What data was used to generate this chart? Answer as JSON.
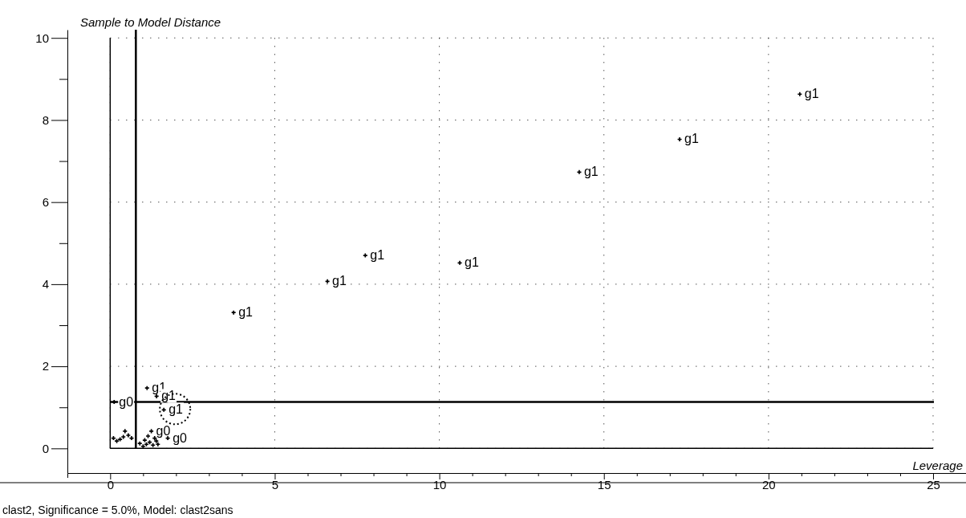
{
  "chart_data": {
    "type": "scatter",
    "xlabel": "Leverage",
    "ylabel": "Sample to Model Distance",
    "annotations": [
      "clast2, Significance = 5.0%, Model: clast2sans"
    ],
    "xlim": [
      -1.3,
      26
    ],
    "ylim": [
      -0.6,
      10.2
    ],
    "xticks": [
      0,
      {
        "value": 1,
        "label": null
      },
      {
        "value": 2,
        "label": null
      },
      {
        "value": 3,
        "label": null
      },
      {
        "value": 4,
        "label": null
      },
      5,
      {
        "value": 6,
        "label": null
      },
      {
        "value": 7,
        "label": null
      },
      {
        "value": 8,
        "label": null
      },
      {
        "value": 9,
        "label": null
      },
      10,
      {
        "value": 11,
        "label": null
      },
      {
        "value": 12,
        "label": null
      },
      {
        "value": 13,
        "label": null
      },
      {
        "value": 14,
        "label": null
      },
      15,
      {
        "value": 16,
        "label": null
      },
      {
        "value": 17,
        "label": null
      },
      {
        "value": 18,
        "label": null
      },
      {
        "value": 19,
        "label": null
      },
      20,
      {
        "value": 21,
        "label": null
      },
      {
        "value": 22,
        "label": null
      },
      {
        "value": 23,
        "label": null
      },
      {
        "value": 24,
        "label": null
      },
      25
    ],
    "yticks": [
      0,
      {
        "value": 1,
        "label": null
      },
      2,
      {
        "value": 3,
        "label": null
      },
      4,
      {
        "value": 5,
        "label": null
      },
      6,
      {
        "value": 7,
        "label": null
      },
      8,
      {
        "value": 9,
        "label": null
      },
      10
    ],
    "grid": true,
    "marker": "cross",
    "ref_lines": [
      {
        "axis": "x",
        "value": 0.78,
        "color": "#000000"
      },
      {
        "axis": "y",
        "value": 1.13,
        "color": "#000000"
      }
    ],
    "series": [
      {
        "color": "#000000",
        "x": [
          20.95,
          17.3,
          14.25,
          7.75,
          10.62,
          6.6,
          3.75,
          1.12,
          1.41,
          1.63,
          0.12,
          0.1,
          0.2,
          0.3,
          0.4,
          0.45,
          0.55,
          0.65,
          0.9,
          1.0,
          1.05,
          1.1,
          1.15,
          1.2,
          1.25,
          1.3,
          1.35,
          1.4,
          1.45,
          1.75
        ],
        "values": [
          8.63,
          7.53,
          6.73,
          4.7,
          4.52,
          4.07,
          3.31,
          1.47,
          1.27,
          0.94,
          1.13,
          0.25,
          0.18,
          0.22,
          0.28,
          0.42,
          0.32,
          0.25,
          0.12,
          0.05,
          0.2,
          0.1,
          0.3,
          0.15,
          0.42,
          0.08,
          0.25,
          0.18,
          0.1,
          0.25
        ],
        "value_labels": [
          "g1",
          "g1",
          "g1",
          "g1",
          "g1",
          "g1",
          "g1",
          "g1",
          "g1",
          "g1",
          "g0",
          null,
          null,
          null,
          null,
          null,
          null,
          null,
          null,
          null,
          null,
          null,
          null,
          null,
          "g0",
          null,
          null,
          null,
          null,
          "g0"
        ]
      }
    ]
  }
}
